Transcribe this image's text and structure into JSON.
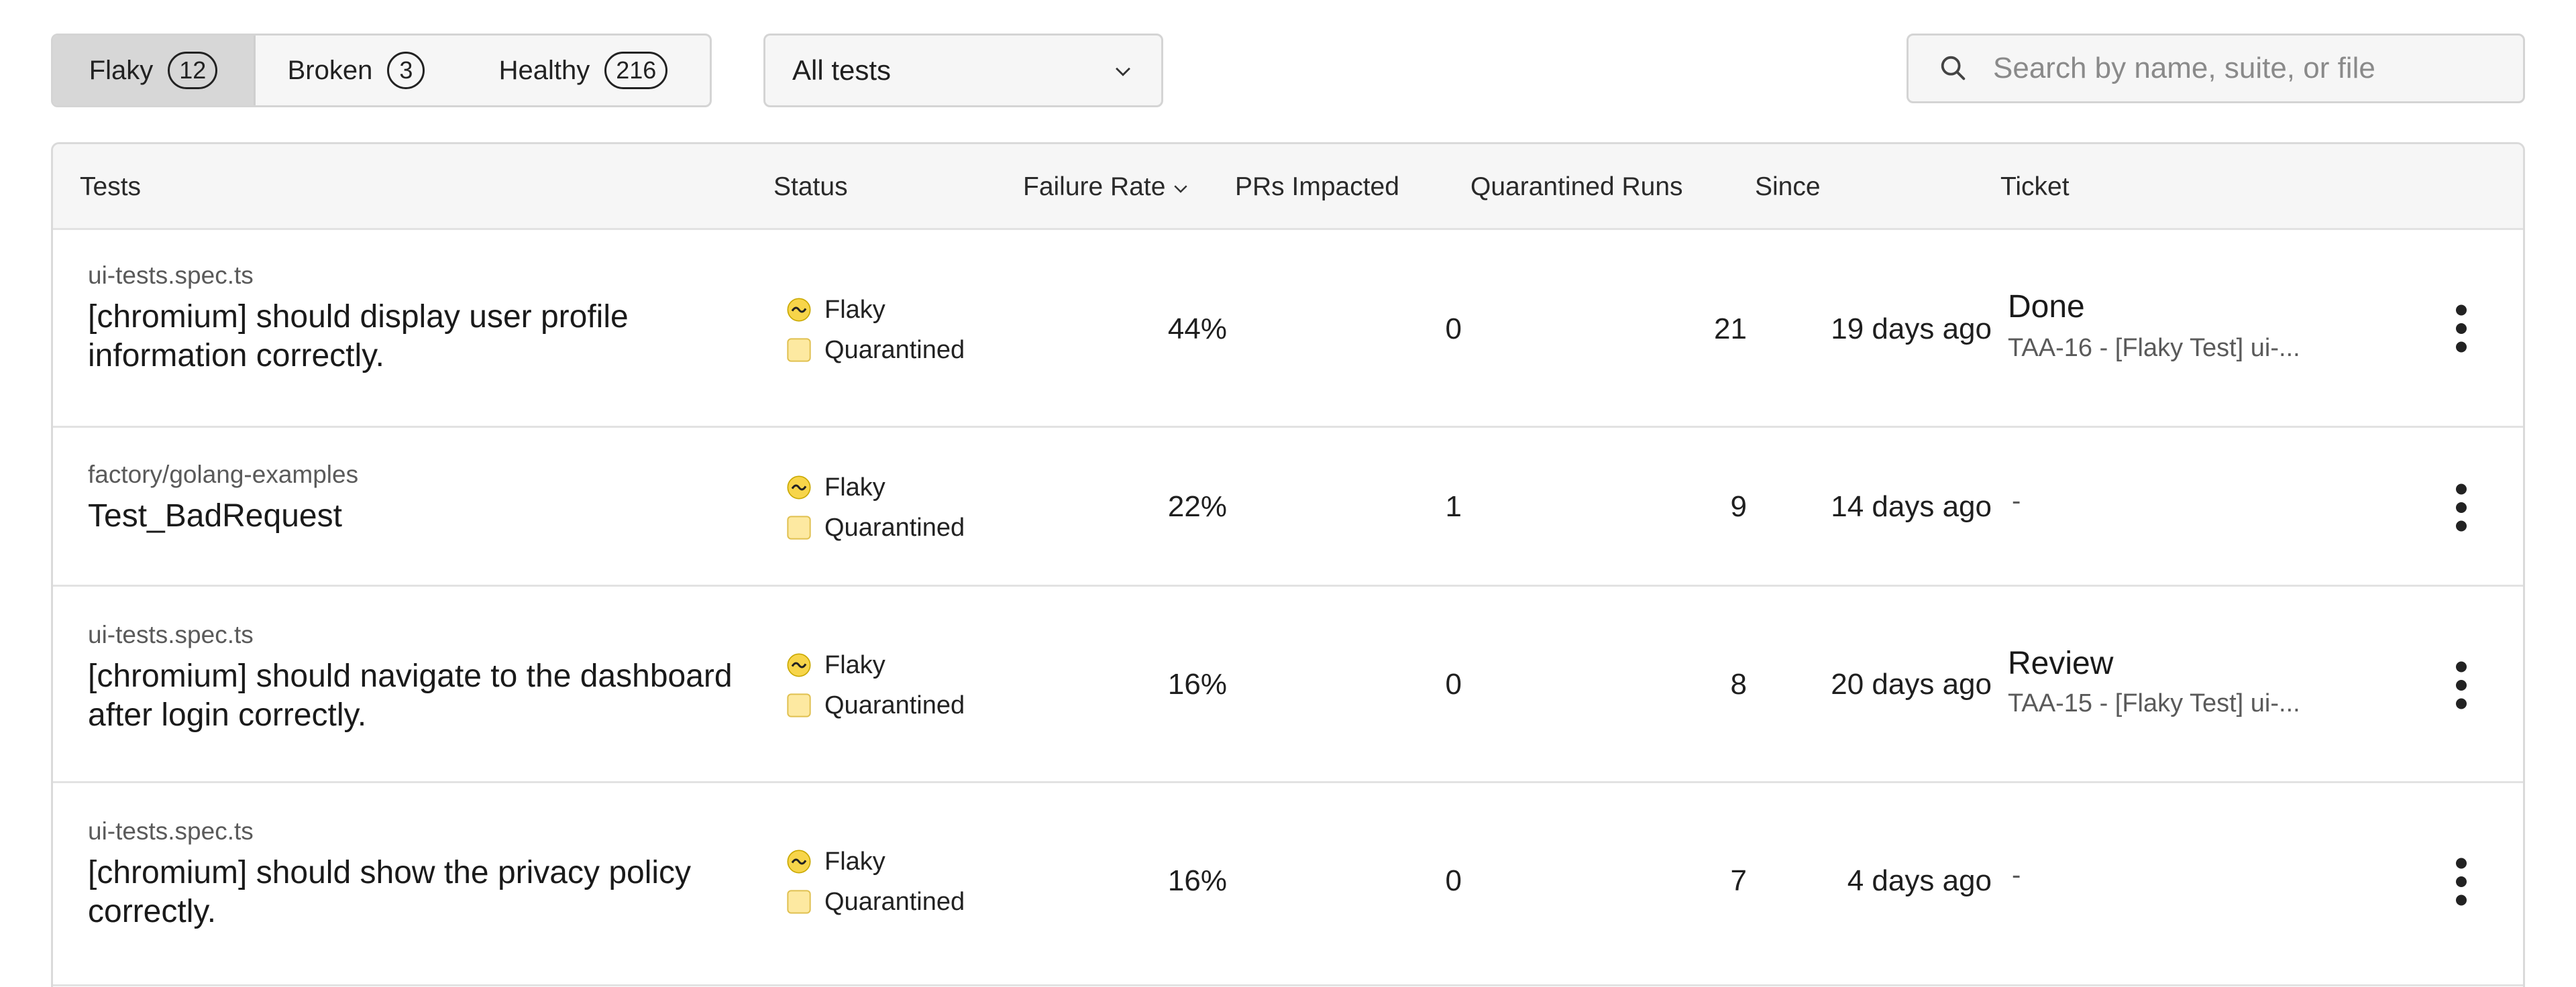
{
  "filters": {
    "tabs": [
      {
        "label": "Flaky",
        "count": "12"
      },
      {
        "label": "Broken",
        "count": "3"
      },
      {
        "label": "Healthy",
        "count": "216"
      }
    ],
    "active_tab": "Flaky",
    "dropdown_value": "All tests",
    "search_placeholder": "Search by name, suite, or file"
  },
  "table": {
    "columns": {
      "tests": "Tests",
      "status": "Status",
      "failure_rate": "Failure Rate",
      "prs_impacted": "PRs Impacted",
      "quarantined_runs": "Quarantined Runs",
      "since": "Since",
      "ticket": "Ticket"
    },
    "rows": [
      {
        "suite": "ui-tests.spec.ts",
        "name": "[chromium] should display user profile information correctly.",
        "status": "Flaky",
        "substatus": "Quarantined",
        "failure_rate": "44%",
        "prs_impacted": "0",
        "quarantined_runs": "21",
        "since": "19 days ago",
        "ticket_status": "Done",
        "ticket_title": "TAA-16 - [Flaky Test] ui-..."
      },
      {
        "suite": "factory/golang-examples",
        "name": "Test_BadRequest",
        "status": "Flaky",
        "substatus": "Quarantined",
        "failure_rate": "22%",
        "prs_impacted": "1",
        "quarantined_runs": "9",
        "since": "14 days ago",
        "ticket_status": "-",
        "ticket_title": ""
      },
      {
        "suite": "ui-tests.spec.ts",
        "name": "[chromium] should navigate to the dashboard after login correctly.",
        "status": "Flaky",
        "substatus": "Quarantined",
        "failure_rate": "16%",
        "prs_impacted": "0",
        "quarantined_runs": "8",
        "since": "20 days ago",
        "ticket_status": "Review",
        "ticket_title": "TAA-15 - [Flaky Test] ui-..."
      },
      {
        "suite": "ui-tests.spec.ts",
        "name": "[chromium] should show the privacy policy correctly.",
        "status": "Flaky",
        "substatus": "Quarantined",
        "failure_rate": "16%",
        "prs_impacted": "0",
        "quarantined_runs": "7",
        "since": "4 days ago",
        "ticket_status": "-",
        "ticket_title": ""
      }
    ]
  },
  "icons": {
    "flaky": "flaky-wave-icon",
    "quarantined": "quarantined-square-icon",
    "search": "search-icon",
    "dropdown": "chevron-down-icon",
    "sort": "sort-chevron-down-icon",
    "row_menu": "more-vertical-icon"
  },
  "colors": {
    "flaky_icon": "#f7d54a",
    "quarantined_icon": "#fde9a1",
    "active_tab": "#d7d7d7"
  }
}
